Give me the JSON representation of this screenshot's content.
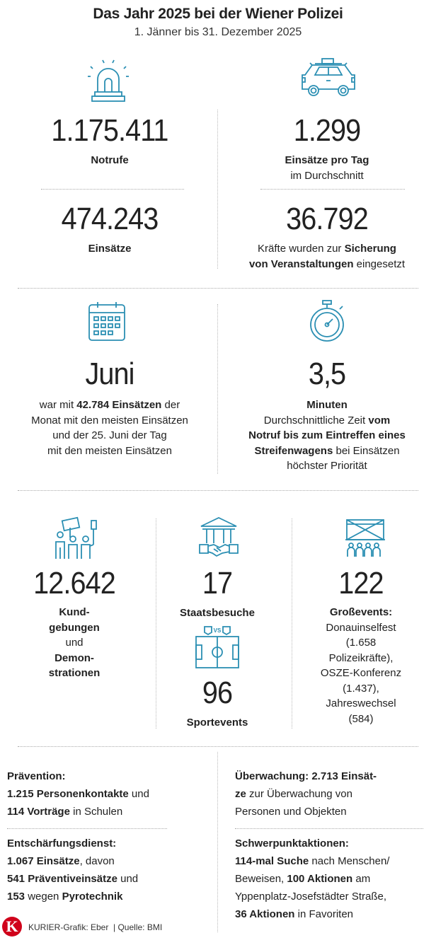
{
  "header": {
    "title": "Das Jahr 2025 bei der Wiener Polizei",
    "subtitle": "1. Jänner bis 31. Dezember 2025"
  },
  "colors": {
    "icon": "#2b8fb3",
    "text": "#222222",
    "logo": "#d0021b"
  },
  "section1": {
    "notrufe": {
      "icon": "siren-icon",
      "value": "1.175.411",
      "label": "Notrufe"
    },
    "pro_tag": {
      "icon": "police-car-icon",
      "value": "1.299",
      "label_bold": "Einsätze pro Tag",
      "label_rest": "im Durchschnitt"
    },
    "einsaetze": {
      "value": "474.243",
      "label": "Einsätze"
    },
    "kraefte": {
      "value": "36.792",
      "t1": "Kräfte wurden zur ",
      "t2": "Sicherung",
      "t3": "von Veranstaltungen",
      "t4": " eingesetzt"
    }
  },
  "section2": {
    "juni": {
      "icon": "calendar-icon",
      "value": "Juni",
      "l1a": "war mit ",
      "l1b": "42.784 Einsätzen",
      "l1c": " der",
      "l2": "Monat mit den meisten Einsätzen",
      "l3": "und der 25. Juni der Tag",
      "l4": "mit den meisten Einsätzen"
    },
    "minuten": {
      "icon": "stopwatch-icon",
      "value": "3,5",
      "l1": "Minuten",
      "l2a": "Durchschnittliche Zeit ",
      "l2b": "vom",
      "l3": "Notruf bis zum Eintreffen eines",
      "l4a": "Streifenwagens",
      "l4b": " bei Einsätzen",
      "l5": "höchster Priorität"
    }
  },
  "section3": {
    "demos": {
      "icon": "demonstration-icon",
      "value": "12.642",
      "l1": "Kund-",
      "l2": "gebungen",
      "l3": "und",
      "l4": "Demon-",
      "l5": "strationen"
    },
    "staatsbesuche": {
      "icon": "state-visit-handshake-icon",
      "value": "17",
      "label": "Staatsbesuche"
    },
    "sport": {
      "icon": "soccer-field-icon",
      "value": "96",
      "label": "Sportevents",
      "vs": "VS"
    },
    "events": {
      "icon": "concert-stage-icon",
      "value": "122",
      "l1": "Großevents:",
      "l2": "Donauinselfest",
      "l3": "(1.658",
      "l4": "Polizeikräfte),",
      "l5": "OSZE-Konferenz",
      "l6": "(1.437),",
      "l7": "Jahreswechsel",
      "l8": "(584)"
    }
  },
  "section4": {
    "praevention": {
      "h": "Prävention:",
      "l1a": "1.215 Personenkontakte",
      "l1b": " und",
      "l2a": "114 Vorträge",
      "l2b": " in Schulen"
    },
    "ueberwachung": {
      "h1": "Überwachung: 2.713 Einsät-",
      "h2": "ze",
      "l1": " zur Überwachung von",
      "l2": "Personen und Objekten"
    },
    "entschaerfung": {
      "h": "Entschärfungsdienst:",
      "l1a": "1.067 Einsätze",
      "l1b": ", davon",
      "l2a": "541 Präventiveinsätze",
      "l2b": " und",
      "l3a": "153",
      "l3b": " wegen ",
      "l3c": "Pyrotechnik"
    },
    "schwerpunkt": {
      "h": "Schwerpunktaktionen:",
      "l1a": "114-mal Suche",
      "l1b": " nach Menschen/",
      "l2a": "Beweisen, ",
      "l2b": "100 Aktionen",
      "l2c": " am",
      "l3": "Yppenplatz-Josefstädter Straße,",
      "l4a": "36 Aktionen",
      "l4b": " in Favoriten"
    }
  },
  "footer": {
    "logo": "K",
    "credit": "KURIER-Grafik: Eber  | Quelle: BMI"
  }
}
